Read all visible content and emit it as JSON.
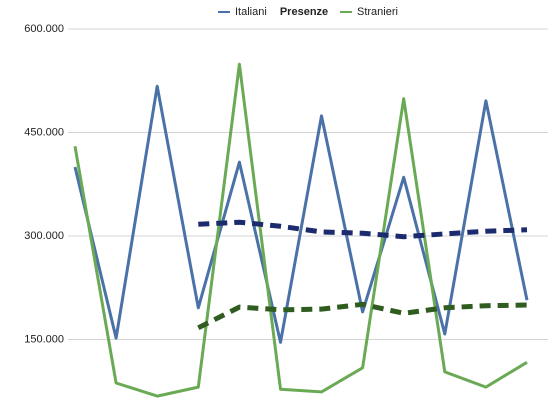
{
  "chart_data": {
    "type": "line",
    "title": "Presenze",
    "categories": [
      null,
      null,
      null,
      null,
      null,
      null,
      null,
      null,
      null,
      null,
      null,
      null
    ],
    "series": [
      {
        "name": "Italiani",
        "color": "#4a72a8",
        "dashed": false,
        "values": [
          400000,
          152000,
          517000,
          196000,
          407000,
          146000,
          474000,
          190000,
          385000,
          158000,
          496000,
          207000
        ]
      },
      {
        "name": "Stranieri",
        "color": "#6aaa55",
        "dashed": false,
        "values": [
          430000,
          87000,
          68000,
          81000,
          549000,
          78000,
          74000,
          109000,
          499000,
          103000,
          81000,
          117000
        ]
      },
      {
        "color": "#1c2a6e",
        "dashed": true,
        "values": [
          null,
          null,
          null,
          317000,
          320000,
          314000,
          306000,
          304000,
          299000,
          303000,
          307000,
          309000
        ]
      },
      {
        "color": "#2f5c1f",
        "dashed": true,
        "values": [
          null,
          null,
          null,
          167000,
          197000,
          193000,
          194000,
          201000,
          188000,
          196000,
          199000,
          200000
        ]
      }
    ],
    "ylim": [
      60000,
      620000
    ],
    "yticks": [
      {
        "value": 150000,
        "label": "150.000"
      },
      {
        "value": 300000,
        "label": "300.000"
      },
      {
        "value": 450000,
        "label": "450.000"
      },
      {
        "value": 600000,
        "label": "600.000"
      }
    ],
    "grid": true
  }
}
